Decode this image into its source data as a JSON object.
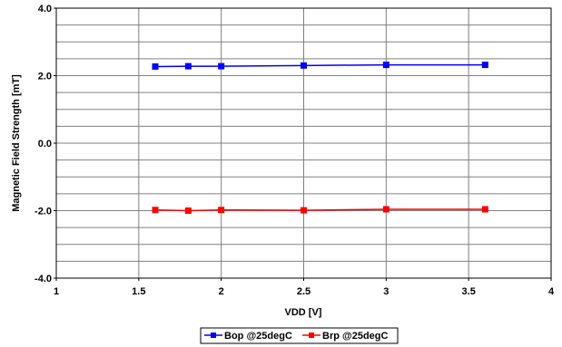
{
  "chart_data": {
    "type": "line",
    "title": "",
    "xlabel": "VDD [V]",
    "ylabel": "Magnetic Field Strength [mT]",
    "xlim": [
      1,
      4
    ],
    "ylim": [
      -4,
      4
    ],
    "x_ticks": [
      "1",
      "1.5",
      "2",
      "2.5",
      "3",
      "3.5",
      "4"
    ],
    "x_tick_values": [
      1,
      1.5,
      2,
      2.5,
      3,
      3.5,
      4
    ],
    "y_ticks": [
      "4.0",
      "2.0",
      "0.0",
      "-2.0",
      "-4.0"
    ],
    "y_tick_values": [
      4,
      2,
      0,
      -2,
      -4
    ],
    "grid": true,
    "legend_position": "bottom-center",
    "series": [
      {
        "name": "Bop @25degC",
        "color": "#0000ff",
        "x": [
          1.6,
          1.8,
          2.0,
          2.5,
          3.0,
          3.6
        ],
        "y": [
          2.27,
          2.28,
          2.28,
          2.3,
          2.32,
          2.32
        ]
      },
      {
        "name": "Brp @25degC",
        "color": "#ff0000",
        "x": [
          1.6,
          1.8,
          2.0,
          2.5,
          3.0,
          3.6
        ],
        "y": [
          -1.98,
          -2.0,
          -1.98,
          -1.99,
          -1.96,
          -1.96
        ]
      }
    ]
  }
}
